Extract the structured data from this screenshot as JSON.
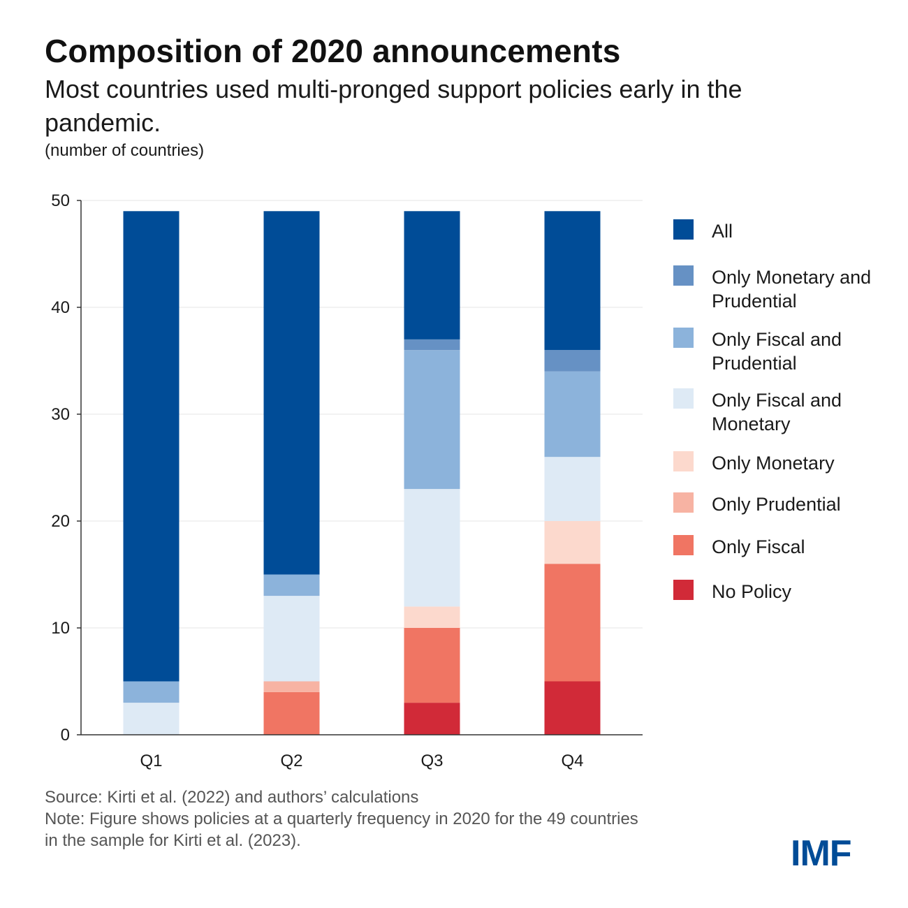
{
  "header": {
    "title": "Composition of 2020 announcements",
    "subtitle": "Most countries used multi-pronged support policies early in the pandemic.",
    "unit": "(number of countries)"
  },
  "chart_data": {
    "type": "bar",
    "stacked": true,
    "title": "Composition of 2020 announcements",
    "xlabel": "",
    "ylabel": "(number of countries)",
    "ylim": [
      0,
      50
    ],
    "yticks": [
      0,
      10,
      20,
      30,
      40,
      50
    ],
    "grid": true,
    "legend_position": "right",
    "categories": [
      "Q1",
      "Q2",
      "Q3",
      "Q4"
    ],
    "series": [
      {
        "name": "No Policy",
        "color": "#d12a38",
        "values": [
          0,
          0,
          3,
          5
        ]
      },
      {
        "name": "Only Fiscal",
        "color": "#f07563",
        "values": [
          0,
          4,
          7,
          11
        ]
      },
      {
        "name": "Only Prudential",
        "color": "#f7b3a3",
        "values": [
          0,
          1,
          0,
          0
        ]
      },
      {
        "name": "Only Monetary",
        "color": "#fcd9cd",
        "values": [
          0,
          0,
          2,
          4
        ]
      },
      {
        "name": "Only Fiscal and Monetary",
        "color": "#deeaf5",
        "values": [
          3,
          8,
          11,
          6
        ]
      },
      {
        "name": "Only Fiscal and Prudential",
        "color": "#8cb3db",
        "values": [
          2,
          2,
          13,
          8
        ]
      },
      {
        "name": "Only Monetary and Prudential",
        "color": "#6691c4",
        "values": [
          0,
          0,
          1,
          2
        ]
      },
      {
        "name": "All",
        "color": "#004c97",
        "values": [
          44,
          34,
          12,
          13
        ]
      }
    ]
  },
  "legend": {
    "items": [
      {
        "label": "All",
        "color": "#004c97"
      },
      {
        "label": "Only Monetary and Prudential",
        "color": "#6691c4"
      },
      {
        "label": "Only Fiscal and Prudential",
        "color": "#8cb3db"
      },
      {
        "label": "Only Fiscal and Monetary",
        "color": "#deeaf5"
      },
      {
        "label": "Only Monetary",
        "color": "#fcd9cd"
      },
      {
        "label": "Only Prudential",
        "color": "#f7b3a3"
      },
      {
        "label": "Only Fiscal",
        "color": "#f07563"
      },
      {
        "label": "No Policy",
        "color": "#d12a38"
      }
    ]
  },
  "footer": {
    "source": "Source: Kirti et al. (2022) and authors’ calculations",
    "note": "Note: Figure shows policies at a quarterly frequency in 2020 for the 49 countries in the sample for Kirti et al. (2023).",
    "logo": "IMF"
  },
  "colors": {
    "brand": "#004c97",
    "gridline": "#e6e6e6",
    "axis": "#333333"
  }
}
